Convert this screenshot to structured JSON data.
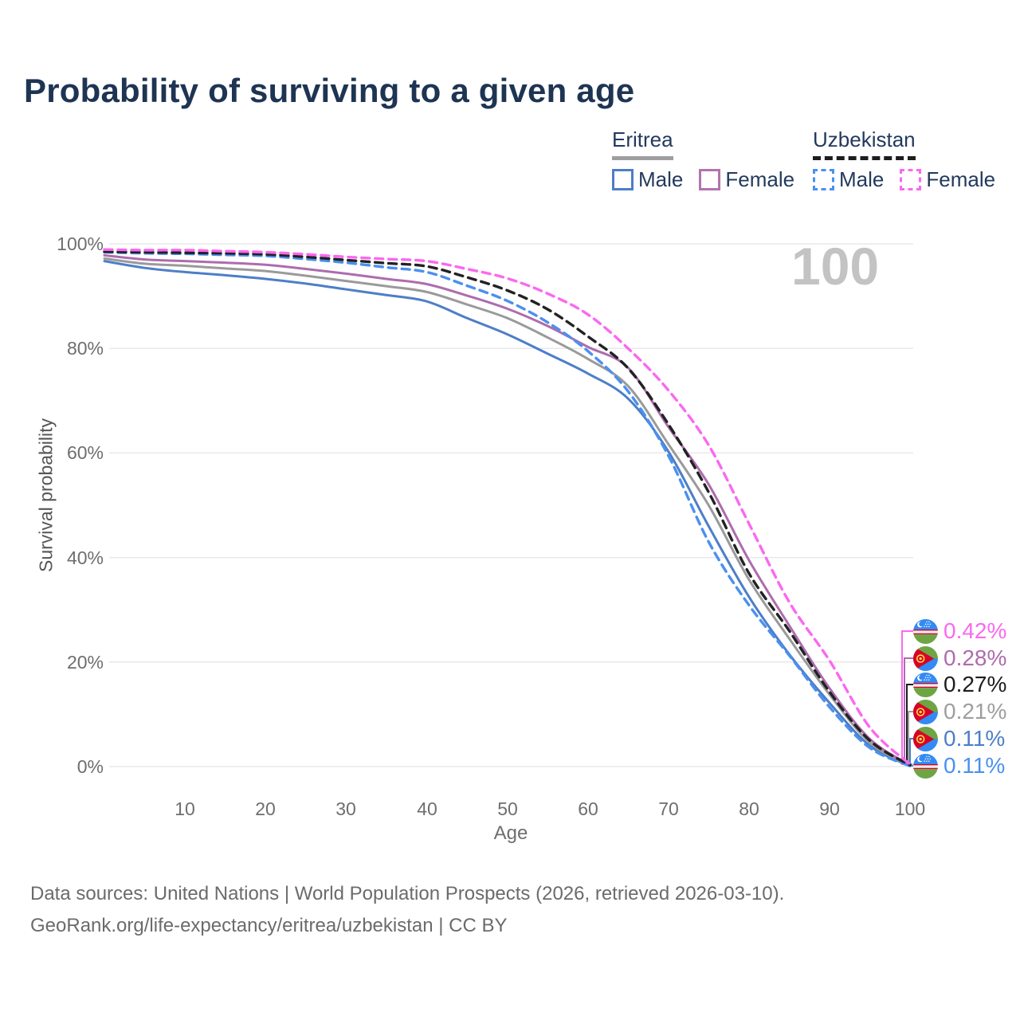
{
  "title": "Probability of surviving to a given age",
  "watermark": "100",
  "legend": {
    "groups": [
      {
        "country": "Eritrea",
        "items": [
          {
            "label": "Male"
          },
          {
            "label": "Female"
          }
        ]
      },
      {
        "country": "Uzbekistan",
        "items": [
          {
            "label": "Male"
          },
          {
            "label": "Female"
          }
        ]
      }
    ]
  },
  "y_axis": {
    "title": "Survival probability",
    "ticks": [
      "0%",
      "20%",
      "40%",
      "60%",
      "80%",
      "100%"
    ]
  },
  "x_axis": {
    "title": "Age",
    "ticks": [
      "10",
      "20",
      "30",
      "40",
      "50",
      "60",
      "70",
      "80",
      "90",
      "100"
    ]
  },
  "end_labels": [
    {
      "flag": "uzbekistan-flag",
      "value": "0.42%",
      "color": "#fb68f0"
    },
    {
      "flag": "eritrea-flag",
      "value": "0.28%",
      "color": "#ae6cae"
    },
    {
      "flag": "uzbekistan-flag",
      "value": "0.27%",
      "color": "#1d1d1d"
    },
    {
      "flag": "eritrea-flag",
      "value": "0.21%",
      "color": "#9e9e9e"
    },
    {
      "flag": "eritrea-flag",
      "value": "0.11%",
      "color": "#4d7ec8"
    },
    {
      "flag": "uzbekistan-flag",
      "value": "0.11%",
      "color": "#4a90f0"
    }
  ],
  "footer": {
    "line1": "Data sources: United Nations | World Population Prospects (2026, retrieved 2026-03-10).",
    "line2": "GeoRank.org/life-expectancy/eritrea/uzbekistan | CC BY"
  },
  "chart_data": {
    "type": "line",
    "title": "Probability of surviving to a given age",
    "xlabel": "Age",
    "ylabel": "Survival probability",
    "xlim": [
      0,
      100
    ],
    "ylim_percent": [
      0,
      100
    ],
    "grid": "horizontal",
    "legend_position": "top-right",
    "ages": [
      0,
      5,
      10,
      15,
      20,
      25,
      30,
      35,
      40,
      45,
      50,
      55,
      60,
      65,
      70,
      75,
      80,
      85,
      90,
      95,
      100
    ],
    "series": [
      {
        "name": "Eritrea Male",
        "country": "Eritrea",
        "sex": "Male",
        "style": "solid",
        "color": "#4d7ec8",
        "end_label_index": 4,
        "end_value_percent": 0.11,
        "values": [
          96.7,
          95.4,
          94.6,
          94.0,
          93.3,
          92.4,
          91.3,
          90.2,
          89.0,
          85.8,
          82.7,
          79.0,
          75.2,
          70.4,
          60.3,
          46.0,
          32.5,
          21.5,
          12.2,
          4.0,
          0.11
        ]
      },
      {
        "name": "Eritrea Both sexes",
        "country": "Eritrea",
        "sex": "Both",
        "style": "solid",
        "color": "#9a9a9a",
        "end_label_index": 3,
        "end_value_percent": 0.21,
        "values": [
          97.2,
          96.2,
          95.8,
          95.3,
          94.8,
          93.9,
          92.9,
          91.9,
          90.8,
          88.4,
          85.8,
          82.1,
          78.0,
          72.8,
          61.7,
          50.0,
          35.8,
          24.5,
          13.8,
          4.6,
          0.21
        ]
      },
      {
        "name": "Eritrea Female",
        "country": "Eritrea",
        "sex": "Female",
        "style": "solid",
        "color": "#ae6cae",
        "end_label_index": 1,
        "end_value_percent": 0.28,
        "values": [
          97.8,
          97.0,
          96.7,
          96.4,
          96.0,
          95.2,
          94.3,
          93.3,
          92.3,
          90.1,
          87.6,
          84.3,
          80.3,
          76.3,
          65.0,
          54.0,
          39.5,
          27.0,
          15.0,
          5.3,
          0.28
        ]
      },
      {
        "name": "Uzbekistan Male",
        "country": "Uzbekistan",
        "sex": "Male",
        "style": "dashed",
        "color": "#4a90f0",
        "end_label_index": 5,
        "end_value_percent": 0.11,
        "values": [
          98.4,
          98.2,
          98.1,
          97.9,
          97.7,
          97.1,
          96.4,
          95.5,
          94.6,
          92.0,
          89.1,
          85.0,
          79.5,
          71.8,
          59.5,
          43.0,
          30.9,
          21.3,
          11.4,
          3.6,
          0.11
        ]
      },
      {
        "name": "Uzbekistan Both sexes",
        "country": "Uzbekistan",
        "sex": "Both",
        "style": "dashed",
        "color": "#222222",
        "end_label_index": 2,
        "end_value_percent": 0.27,
        "values": [
          98.5,
          98.4,
          98.3,
          98.2,
          98.0,
          97.5,
          96.9,
          96.3,
          95.7,
          93.6,
          91.1,
          87.5,
          82.3,
          76.2,
          65.5,
          52.5,
          37.0,
          26.0,
          14.3,
          5.0,
          0.27
        ]
      },
      {
        "name": "Uzbekistan Female",
        "country": "Uzbekistan",
        "sex": "Female",
        "style": "dashed",
        "color": "#fb68f0",
        "end_label_index": 0,
        "end_value_percent": 0.42,
        "values": [
          98.9,
          98.8,
          98.8,
          98.6,
          98.4,
          98.0,
          97.5,
          97.1,
          96.7,
          95.2,
          93.4,
          90.5,
          86.5,
          80.0,
          72.0,
          61.5,
          46.5,
          31.5,
          20.3,
          7.5,
          0.42
        ]
      }
    ]
  }
}
